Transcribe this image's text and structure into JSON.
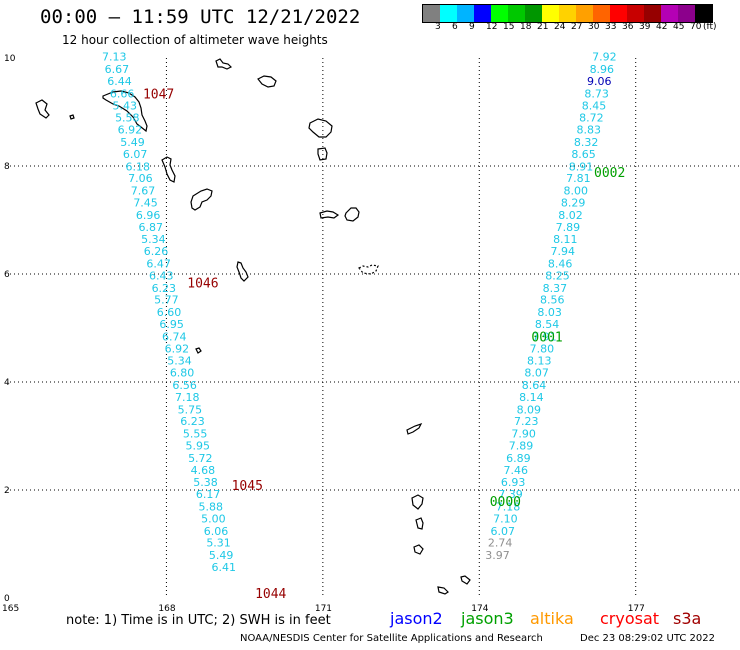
{
  "title": "00:00 — 11:59 UTC 12/21/2022",
  "subtitle": "12 hour collection of altimeter wave heights",
  "colorbar": {
    "colors": [
      "#808080",
      "#00ffff",
      "#00b4ff",
      "#0000ff",
      "#00ff00",
      "#00c800",
      "#009600",
      "#ffff00",
      "#ffd200",
      "#ffa000",
      "#ff6400",
      "#ff0000",
      "#c80000",
      "#960000",
      "#b400b4",
      "#8c008c",
      "#000000"
    ],
    "labels": [
      "3",
      "6",
      "9",
      "12",
      "15",
      "18",
      "21",
      "24",
      "27",
      "30",
      "33",
      "36",
      "39",
      "42",
      "45",
      "70",
      "(ft)"
    ]
  },
  "axes": {
    "x_ticks": [
      "165",
      "168",
      "171",
      "174",
      "177"
    ],
    "y_ticks": [
      "0",
      "2",
      "4",
      "6",
      "8",
      "10"
    ],
    "x_range": [
      165,
      179
    ],
    "y_range": [
      0,
      10
    ]
  },
  "tracks": [
    {
      "satellite": "jason3",
      "pass_labels": [
        {
          "text": "1047",
          "lon": 167.55,
          "lat": 9.25
        },
        {
          "text": "1046",
          "lon": 168.4,
          "lat": 5.75
        },
        {
          "text": "1045",
          "lon": 169.25,
          "lat": 2.0
        },
        {
          "text": "1044",
          "lon": 169.7,
          "lat": 0.0
        }
      ],
      "points": [
        {
          "lon": 167.0,
          "lat": 9.95,
          "swh": "7.13"
        },
        {
          "lon": 167.05,
          "lat": 9.72,
          "swh": "6.67"
        },
        {
          "lon": 167.1,
          "lat": 9.5,
          "swh": "6.44"
        },
        {
          "lon": 167.15,
          "lat": 9.27,
          "swh": "6.66"
        },
        {
          "lon": 167.2,
          "lat": 9.05,
          "swh": "5.43"
        },
        {
          "lon": 167.25,
          "lat": 8.82,
          "swh": "5.58"
        },
        {
          "lon": 167.3,
          "lat": 8.6,
          "swh": "6.92"
        },
        {
          "lon": 167.35,
          "lat": 8.37,
          "swh": "5.49"
        },
        {
          "lon": 167.4,
          "lat": 8.15,
          "swh": "6.07"
        },
        {
          "lon": 167.45,
          "lat": 7.92,
          "swh": "6.18"
        },
        {
          "lon": 167.5,
          "lat": 7.7,
          "swh": "7.06"
        },
        {
          "lon": 167.55,
          "lat": 7.47,
          "swh": "7.67"
        },
        {
          "lon": 167.6,
          "lat": 7.25,
          "swh": "7.45"
        },
        {
          "lon": 167.65,
          "lat": 7.02,
          "swh": "6.96"
        },
        {
          "lon": 167.7,
          "lat": 6.8,
          "swh": "6.87"
        },
        {
          "lon": 167.75,
          "lat": 6.57,
          "swh": "5.34"
        },
        {
          "lon": 167.8,
          "lat": 6.35,
          "swh": "6.26"
        },
        {
          "lon": 167.85,
          "lat": 6.12,
          "swh": "6.47"
        },
        {
          "lon": 167.9,
          "lat": 5.9,
          "swh": "6.43"
        },
        {
          "lon": 167.95,
          "lat": 5.67,
          "swh": "6.23"
        },
        {
          "lon": 168.0,
          "lat": 5.45,
          "swh": "5.77"
        },
        {
          "lon": 168.05,
          "lat": 5.22,
          "swh": "6.60"
        },
        {
          "lon": 168.1,
          "lat": 5.0,
          "swh": "6.95"
        },
        {
          "lon": 168.15,
          "lat": 4.77,
          "swh": "6.74"
        },
        {
          "lon": 168.2,
          "lat": 4.55,
          "swh": "6.92"
        },
        {
          "lon": 168.25,
          "lat": 4.32,
          "swh": "5.34"
        },
        {
          "lon": 168.3,
          "lat": 4.1,
          "swh": "6.80"
        },
        {
          "lon": 168.35,
          "lat": 3.87,
          "swh": "6.56"
        },
        {
          "lon": 168.4,
          "lat": 3.65,
          "swh": "7.18"
        },
        {
          "lon": 168.45,
          "lat": 3.42,
          "swh": "5.75"
        },
        {
          "lon": 168.5,
          "lat": 3.2,
          "swh": "6.23"
        },
        {
          "lon": 168.55,
          "lat": 2.97,
          "swh": "5.55"
        },
        {
          "lon": 168.6,
          "lat": 2.75,
          "swh": "5.95"
        },
        {
          "lon": 168.65,
          "lat": 2.52,
          "swh": "5.72"
        },
        {
          "lon": 168.7,
          "lat": 2.3,
          "swh": "4.68"
        },
        {
          "lon": 168.75,
          "lat": 2.07,
          "swh": "5.38"
        },
        {
          "lon": 168.8,
          "lat": 1.85,
          "swh": "6.17"
        },
        {
          "lon": 168.85,
          "lat": 1.62,
          "swh": "5.88"
        },
        {
          "lon": 168.9,
          "lat": 1.4,
          "swh": "5.00"
        },
        {
          "lon": 168.95,
          "lat": 1.17,
          "swh": "6.06"
        },
        {
          "lon": 169.0,
          "lat": 0.95,
          "swh": "5.31"
        },
        {
          "lon": 169.05,
          "lat": 0.72,
          "swh": "5.49"
        },
        {
          "lon": 169.1,
          "lat": 0.5,
          "swh": "6.41"
        }
      ]
    },
    {
      "satellite": "jason3",
      "pass_labels": [
        {
          "text": "0002",
          "lon": 176.2,
          "lat": 7.8
        },
        {
          "text": "0001",
          "lon": 175.0,
          "lat": 4.75
        },
        {
          "text": "0000",
          "lon": 174.2,
          "lat": 1.7
        }
      ],
      "points": [
        {
          "lon": 176.4,
          "lat": 9.95,
          "swh": "7.92"
        },
        {
          "lon": 176.35,
          "lat": 9.72,
          "swh": "8.96"
        },
        {
          "lon": 176.3,
          "lat": 9.5,
          "swh": "9.06",
          "dark": true
        },
        {
          "lon": 176.25,
          "lat": 9.27,
          "swh": "8.73"
        },
        {
          "lon": 176.2,
          "lat": 9.05,
          "swh": "8.45"
        },
        {
          "lon": 176.15,
          "lat": 8.82,
          "swh": "8.72"
        },
        {
          "lon": 176.1,
          "lat": 8.6,
          "swh": "8.83"
        },
        {
          "lon": 176.05,
          "lat": 8.37,
          "swh": "8.32"
        },
        {
          "lon": 176.0,
          "lat": 8.15,
          "swh": "8.65"
        },
        {
          "lon": 175.95,
          "lat": 7.92,
          "swh": "8.91"
        },
        {
          "lon": 175.9,
          "lat": 7.7,
          "swh": "7.81"
        },
        {
          "lon": 175.85,
          "lat": 7.47,
          "swh": "8.00"
        },
        {
          "lon": 175.8,
          "lat": 7.25,
          "swh": "8.29"
        },
        {
          "lon": 175.75,
          "lat": 7.02,
          "swh": "8.02"
        },
        {
          "lon": 175.7,
          "lat": 6.8,
          "swh": "7.89"
        },
        {
          "lon": 175.65,
          "lat": 6.57,
          "swh": "8.11"
        },
        {
          "lon": 175.6,
          "lat": 6.35,
          "swh": "7.94"
        },
        {
          "lon": 175.55,
          "lat": 6.12,
          "swh": "8.46"
        },
        {
          "lon": 175.5,
          "lat": 5.9,
          "swh": "8.25"
        },
        {
          "lon": 175.45,
          "lat": 5.67,
          "swh": "8.37"
        },
        {
          "lon": 175.4,
          "lat": 5.45,
          "swh": "8.56"
        },
        {
          "lon": 175.35,
          "lat": 5.22,
          "swh": "8.03"
        },
        {
          "lon": 175.3,
          "lat": 5.0,
          "swh": "8.54"
        },
        {
          "lon": 175.25,
          "lat": 4.77,
          "swh": "7.91"
        },
        {
          "lon": 175.2,
          "lat": 4.55,
          "swh": "7.80"
        },
        {
          "lon": 175.15,
          "lat": 4.32,
          "swh": "8.13"
        },
        {
          "lon": 175.1,
          "lat": 4.1,
          "swh": "8.07"
        },
        {
          "lon": 175.05,
          "lat": 3.87,
          "swh": "8.64"
        },
        {
          "lon": 175.0,
          "lat": 3.65,
          "swh": "8.14"
        },
        {
          "lon": 174.95,
          "lat": 3.42,
          "swh": "8.09"
        },
        {
          "lon": 174.9,
          "lat": 3.2,
          "swh": "7.23"
        },
        {
          "lon": 174.85,
          "lat": 2.97,
          "swh": "7.90"
        },
        {
          "lon": 174.8,
          "lat": 2.75,
          "swh": "7.89"
        },
        {
          "lon": 174.75,
          "lat": 2.52,
          "swh": "6.89"
        },
        {
          "lon": 174.7,
          "lat": 2.3,
          "swh": "7.46"
        },
        {
          "lon": 174.65,
          "lat": 2.07,
          "swh": "6.93"
        },
        {
          "lon": 174.6,
          "lat": 1.85,
          "swh": "7.39"
        },
        {
          "lon": 174.55,
          "lat": 1.62,
          "swh": "7.18"
        },
        {
          "lon": 174.5,
          "lat": 1.4,
          "swh": "7.10"
        },
        {
          "lon": 174.45,
          "lat": 1.17,
          "swh": "6.07"
        },
        {
          "lon": 174.4,
          "lat": 0.95,
          "swh": "2.74",
          "grey": true
        },
        {
          "lon": 174.35,
          "lat": 0.72,
          "swh": "3.97",
          "grey": true
        }
      ]
    }
  ],
  "note": "note: 1) Time is in UTC; 2) SWH is in feet",
  "satellites": [
    {
      "name": "jason2",
      "color": "#0000ff"
    },
    {
      "name": "jason3",
      "color": "#00a000"
    },
    {
      "name": "altika",
      "color": "#ff9900"
    },
    {
      "name": "cryosat",
      "color": "#ff0000"
    },
    {
      "name": "s3a",
      "color": "#a00000"
    }
  ],
  "credit": "NOAA/NESDIS Center for Satellite Applications and Research",
  "timestamp": "Dec 23 08:29:02 UTC 2022",
  "colors": {
    "swh_label": "#1ec8e6",
    "pass_label_left": "#960000",
    "pass_label_right": "#00a000",
    "grey_point": "#909090",
    "grid": "#000000"
  }
}
